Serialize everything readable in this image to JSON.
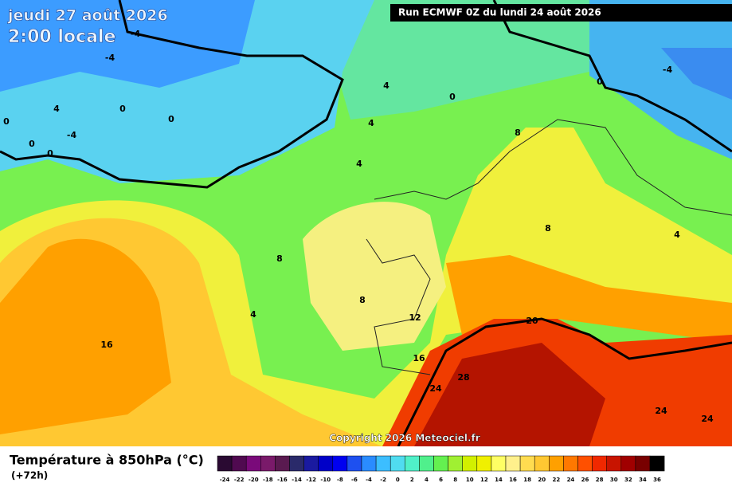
{
  "header": {
    "title": "jeudi 27 août 2026",
    "subtitle": "2:00 locale",
    "run": "Run ECMWF 0Z du lundi 24 août 2026"
  },
  "copyright": "Copyright 2026 Meteociel.fr",
  "legend": {
    "title": "Température à 850hPa (°C)",
    "lead_time": "(+72h)",
    "steps": [
      {
        "value": -24,
        "color": "#2a0a32"
      },
      {
        "value": -22,
        "color": "#500a50"
      },
      {
        "value": -20,
        "color": "#7a0a7a"
      },
      {
        "value": -18,
        "color": "#7a1a6a"
      },
      {
        "value": -16,
        "color": "#5a1a50"
      },
      {
        "value": -14,
        "color": "#2a2a6a"
      },
      {
        "value": -12,
        "color": "#1a1aa0"
      },
      {
        "value": -10,
        "color": "#0000c8"
      },
      {
        "value": -8,
        "color": "#0000f0"
      },
      {
        "value": -6,
        "color": "#1e50f0"
      },
      {
        "value": -4,
        "color": "#2a8cff"
      },
      {
        "value": -2,
        "color": "#3cbeff"
      },
      {
        "value": 0,
        "color": "#50dcf0"
      },
      {
        "value": 2,
        "color": "#50f0c8"
      },
      {
        "value": 4,
        "color": "#50f08c"
      },
      {
        "value": 6,
        "color": "#64f050"
      },
      {
        "value": 8,
        "color": "#a0f032"
      },
      {
        "value": 10,
        "color": "#d2f000"
      },
      {
        "value": 12,
        "color": "#f0f000"
      },
      {
        "value": 14,
        "color": "#ffff64"
      },
      {
        "value": 16,
        "color": "#fff08c"
      },
      {
        "value": 18,
        "color": "#ffdc50"
      },
      {
        "value": 20,
        "color": "#ffc832"
      },
      {
        "value": 22,
        "color": "#ffa000"
      },
      {
        "value": 24,
        "color": "#ff7800"
      },
      {
        "value": 26,
        "color": "#ff5000"
      },
      {
        "value": 28,
        "color": "#f02800"
      },
      {
        "value": 30,
        "color": "#c81400"
      },
      {
        "value": 32,
        "color": "#a00000"
      },
      {
        "value": 34,
        "color": "#780000"
      },
      {
        "value": 36,
        "color": "#000000"
      }
    ]
  },
  "map_labels": [
    -4,
    -4,
    4,
    0,
    0,
    -4,
    0,
    0,
    4,
    -4,
    0,
    0,
    0,
    4,
    4,
    8,
    8,
    4,
    8,
    8,
    4,
    12,
    20,
    16,
    16,
    28,
    24,
    24,
    24
  ]
}
